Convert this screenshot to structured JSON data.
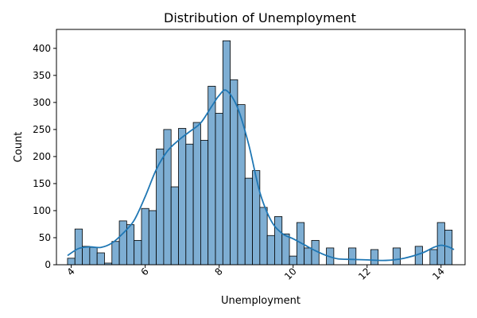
{
  "chart_data": {
    "type": "bar",
    "title": "Distribution of Unemployment",
    "xlabel": "Unemployment",
    "ylabel": "Count",
    "xlim": [
      3.6,
      14.65
    ],
    "ylim": [
      0,
      435
    ],
    "x_ticks": [
      4,
      6,
      8,
      10,
      12,
      14
    ],
    "y_ticks": [
      0,
      50,
      100,
      150,
      200,
      250,
      300,
      350,
      400
    ],
    "bin_start": 3.9,
    "bin_width": 0.2,
    "values": [
      12,
      66,
      34,
      32,
      22,
      3,
      43,
      81,
      74,
      45,
      104,
      100,
      214,
      250,
      144,
      252,
      223,
      263,
      230,
      330,
      280,
      414,
      342,
      296,
      160,
      174,
      106,
      54,
      89,
      57,
      16,
      78,
      31,
      45,
      0,
      31,
      0,
      0,
      31,
      0,
      0,
      28,
      0,
      0,
      31,
      0,
      0,
      34,
      0,
      28,
      78,
      64
    ],
    "kde": {
      "x": [
        3.9,
        4.2,
        4.5,
        4.8,
        5.1,
        5.4,
        5.7,
        6.0,
        6.3,
        6.6,
        6.9,
        7.2,
        7.5,
        7.8,
        8.0,
        8.2,
        8.5,
        8.8,
        9.1,
        9.4,
        9.7,
        10.0,
        10.3,
        10.6,
        10.9,
        11.2,
        11.5,
        12.0,
        12.5,
        13.0,
        13.5,
        13.8,
        14.0,
        14.2,
        14.35
      ],
      "y": [
        17,
        30,
        33,
        32,
        40,
        58,
        82,
        126,
        176,
        210,
        230,
        246,
        262,
        293,
        313,
        322,
        290,
        222,
        134,
        82,
        58,
        48,
        37,
        26,
        17,
        11,
        10,
        9,
        8,
        12,
        22,
        32,
        36,
        33,
        28
      ]
    },
    "bar_color": "#7eaed3",
    "bar_edge_color": "#000000",
    "line_color": "#1f77b4",
    "grid": false,
    "legend": "none"
  }
}
